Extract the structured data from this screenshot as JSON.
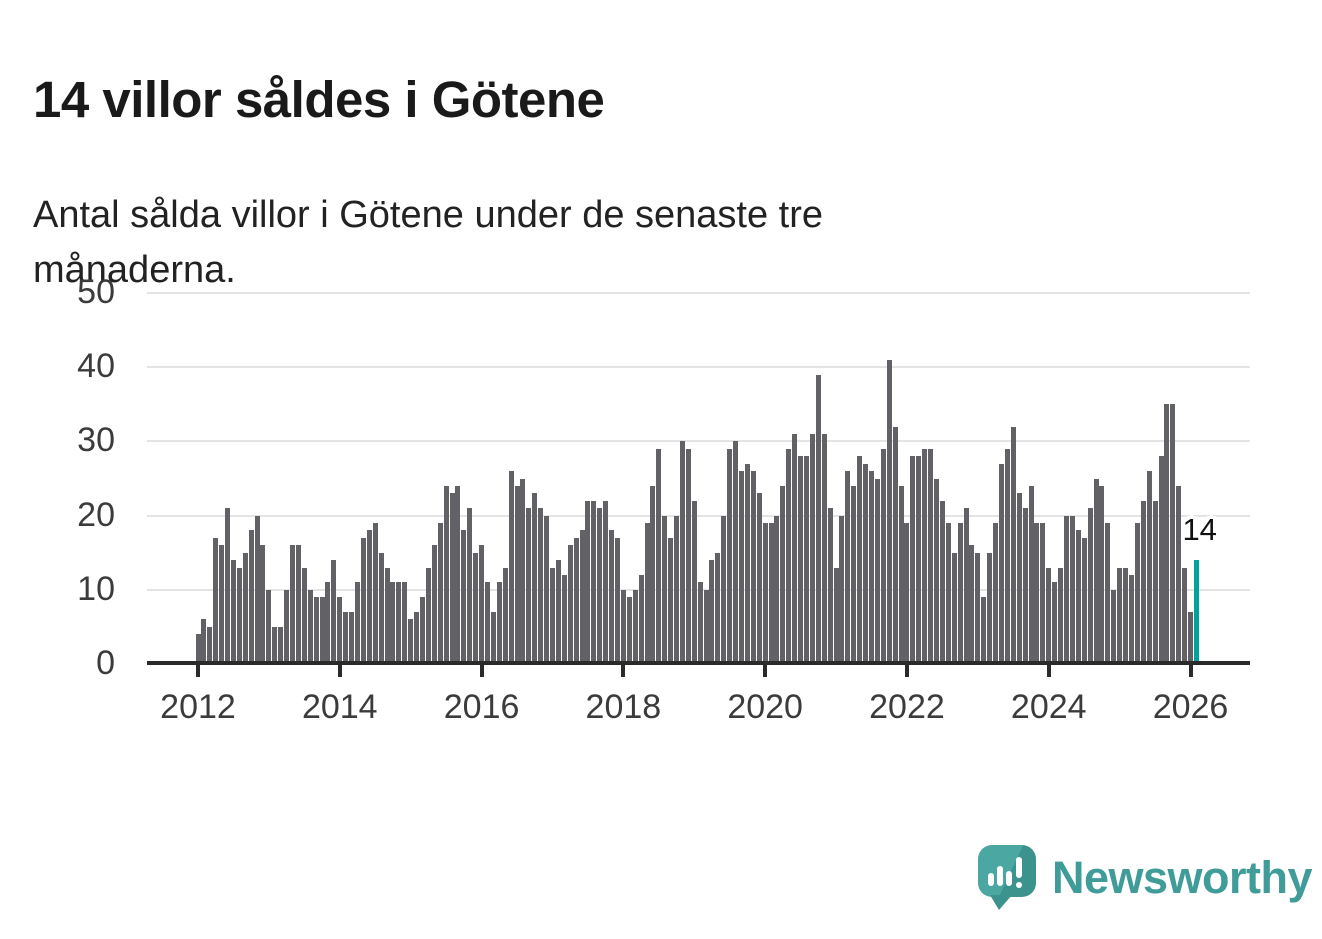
{
  "title": "14 villor såldes i Götene",
  "subtitle": "Antal sålda villor i Götene under de senaste tre månaderna.",
  "chart_data": {
    "type": "bar",
    "title": "14 villor såldes i Götene",
    "subtitle": "Antal sålda villor i Götene under de senaste tre månaderna.",
    "xlabel": "",
    "ylabel": "",
    "frequency": "monthly",
    "x_start": "2012-01",
    "x_end": "2026-02",
    "ylim": [
      0,
      50
    ],
    "yticks": [
      0,
      10,
      20,
      30,
      40,
      50
    ],
    "xticks": [
      2012,
      2014,
      2016,
      2018,
      2020,
      2022,
      2024,
      2026
    ],
    "grid": true,
    "bar_color": "#626266",
    "highlight_color": "#00a39c",
    "highlight_last": true,
    "last_value_label": "14",
    "values": [
      4,
      6,
      5,
      17,
      16,
      21,
      14,
      13,
      15,
      18,
      20,
      16,
      10,
      5,
      5,
      10,
      16,
      16,
      13,
      10,
      9,
      9,
      11,
      14,
      9,
      7,
      7,
      11,
      17,
      18,
      19,
      15,
      13,
      11,
      11,
      11,
      6,
      7,
      9,
      13,
      16,
      19,
      24,
      23,
      24,
      18,
      21,
      15,
      16,
      11,
      7,
      11,
      13,
      26,
      24,
      25,
      21,
      23,
      21,
      20,
      13,
      14,
      12,
      16,
      17,
      18,
      22,
      22,
      21,
      22,
      18,
      17,
      10,
      9,
      10,
      12,
      19,
      24,
      29,
      20,
      17,
      20,
      30,
      29,
      22,
      11,
      10,
      14,
      15,
      20,
      29,
      30,
      26,
      27,
      26,
      23,
      19,
      19,
      20,
      24,
      29,
      31,
      28,
      28,
      31,
      39,
      31,
      21,
      13,
      20,
      26,
      24,
      28,
      27,
      26,
      25,
      29,
      41,
      32,
      24,
      19,
      28,
      28,
      29,
      29,
      25,
      22,
      19,
      15,
      19,
      21,
      16,
      15,
      9,
      15,
      19,
      27,
      29,
      32,
      23,
      21,
      24,
      19,
      19,
      13,
      11,
      13,
      20,
      20,
      18,
      17,
      21,
      25,
      24,
      19,
      10,
      13,
      13,
      12,
      19,
      22,
      26,
      22,
      28,
      35,
      35,
      24,
      13,
      7,
      14
    ]
  },
  "branding": {
    "logo_text": "Newsworthy",
    "logo_color": "#3f9c98"
  }
}
